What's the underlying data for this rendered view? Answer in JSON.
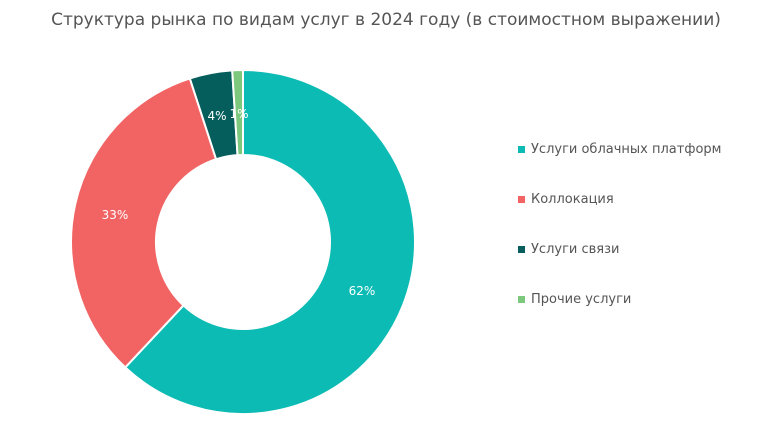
{
  "title": "Структура рынка по видам услуг в 2024 году (в стоимостном выражении)",
  "legend": [
    {
      "label": "Услуги облачных платформ",
      "color": "#0cbbb4"
    },
    {
      "label": "Коллокация",
      "color": "#f26464"
    },
    {
      "label": "Услуги связи",
      "color": "#065e5c"
    },
    {
      "label": "Прочие услуги",
      "color": "#7cc87c"
    }
  ],
  "labels": {
    "s0": "62%",
    "s1": "33%",
    "s2": "4%",
    "s3": "1%"
  },
  "chart_data": {
    "type": "pie",
    "subtype": "donut",
    "title": "Структура рынка по видам услуг в 2024 году (в стоимостном выражении)",
    "categories": [
      "Услуги облачных платформ",
      "Коллокация",
      "Услуги связи",
      "Прочие услуги"
    ],
    "values": [
      62,
      33,
      4,
      1
    ],
    "unit": "%",
    "colors": [
      "#0cbbb4",
      "#f26464",
      "#065e5c",
      "#7cc87c"
    ],
    "legend_position": "right"
  }
}
